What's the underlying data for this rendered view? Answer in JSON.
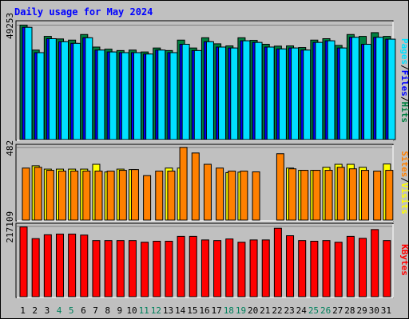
{
  "chart_data": {
    "type": "bar",
    "title": "Daily usage for May 2024",
    "days": [
      "1",
      "2",
      "3",
      "4",
      "5",
      "6",
      "7",
      "8",
      "9",
      "10",
      "11",
      "12",
      "13",
      "14",
      "15",
      "16",
      "17",
      "18",
      "19",
      "20",
      "21",
      "22",
      "23",
      "24",
      "25",
      "26",
      "27",
      "28",
      "29",
      "30",
      "31"
    ],
    "weekend_days": [
      "4",
      "5",
      "11",
      "12",
      "18",
      "19",
      "25",
      "26"
    ],
    "panels": [
      {
        "id": "hits",
        "ymax_label": "49253",
        "ylim": [
          0,
          49253
        ],
        "series": [
          {
            "name": "Hits",
            "color": "#008040",
            "values": [
              49253,
              38500,
              44400,
              43300,
              42800,
              45200,
              39800,
              38900,
              38300,
              38500,
              37700,
              39400,
              38300,
              42800,
              39400,
              43800,
              41200,
              40300,
              43800,
              42700,
              41000,
              40200,
              40300,
              39600,
              42800,
              43400,
              40500,
              45200,
              44400,
              46000,
              44400
            ]
          },
          {
            "name": "Files",
            "color": "#0000ff",
            "values": [
              48300,
              37400,
              43400,
              42100,
              41400,
              43800,
              38500,
              37700,
              37400,
              37400,
              36800,
              38500,
              37400,
              41000,
              38300,
              42100,
              39800,
              39400,
              42500,
              41800,
              39800,
              39000,
              39400,
              38500,
              41800,
              42500,
              39400,
              44000,
              41000,
              44000,
              43200
            ]
          },
          {
            "name": "Pages",
            "color": "#00e0ff",
            "values": [
              48300,
              37400,
              43400,
              42100,
              41400,
              43800,
              38500,
              37700,
              37400,
              37400,
              36800,
              38500,
              37400,
              41000,
              38300,
              42100,
              39800,
              39400,
              42500,
              41800,
              39800,
              39000,
              39400,
              38500,
              41800,
              42500,
              39400,
              44000,
              41000,
              44000,
              43200
            ]
          }
        ]
      },
      {
        "id": "visits",
        "ymax_label": "482",
        "ylim": [
          0,
          482
        ],
        "series": [
          {
            "name": "Visits",
            "color": "#ffff00",
            "values": [
              0,
              360,
              338,
              338,
              338,
              338,
              370,
              319,
              338,
              335,
              0,
              0,
              345,
              345,
              0,
              0,
              0,
              315,
              318,
              0,
              0,
              0,
              345,
              330,
              330,
              350,
              370,
              370,
              350,
              0,
              372
            ]
          },
          {
            "name": "Sites",
            "color": "#ff8000",
            "values": [
              345,
              350,
              330,
              325,
              325,
              325,
              325,
              325,
              330,
              335,
              295,
              325,
              325,
              482,
              445,
              370,
              345,
              325,
              325,
              320,
              0,
              440,
              340,
              330,
              330,
              330,
              350,
              340,
              330,
              325,
              330
            ]
          }
        ]
      },
      {
        "id": "kbytes",
        "ymax_label": "217109",
        "ylim": [
          0,
          217109
        ],
        "series": [
          {
            "name": "KBytes",
            "color": "#ff0000",
            "values": [
              215000,
              179000,
              191000,
              193000,
              193000,
              190000,
              173000,
              173000,
              173000,
              173000,
              168000,
              171000,
              171000,
              186000,
              186000,
              175000,
              173000,
              178000,
              168000,
              175000,
              175000,
              211000,
              188000,
              173000,
              171000,
              173000,
              168000,
              186000,
              180000,
              207000,
              173000
            ]
          }
        ]
      }
    ],
    "side_labels": [
      {
        "parts": [
          {
            "text": "Pages",
            "color": "#00e0ff"
          },
          {
            "text": "/",
            "color": "#000000"
          },
          {
            "text": "Files",
            "color": "#0000ff"
          },
          {
            "text": "/",
            "color": "#000000"
          },
          {
            "text": "Hits",
            "color": "#008040"
          }
        ]
      },
      {
        "parts": [
          {
            "text": "Sites",
            "color": "#ff8000"
          },
          {
            "text": "/",
            "color": "#000000"
          },
          {
            "text": "Visits",
            "color": "#ffff00"
          }
        ]
      },
      {
        "parts": [
          {
            "text": "KBytes",
            "color": "#ff0000"
          }
        ]
      }
    ],
    "colors": {
      "background": "#c0c0c0",
      "title": "#0000ff",
      "weekday_label": "#000000",
      "weekend_label": "#00805c",
      "gridline": "#808080"
    }
  }
}
